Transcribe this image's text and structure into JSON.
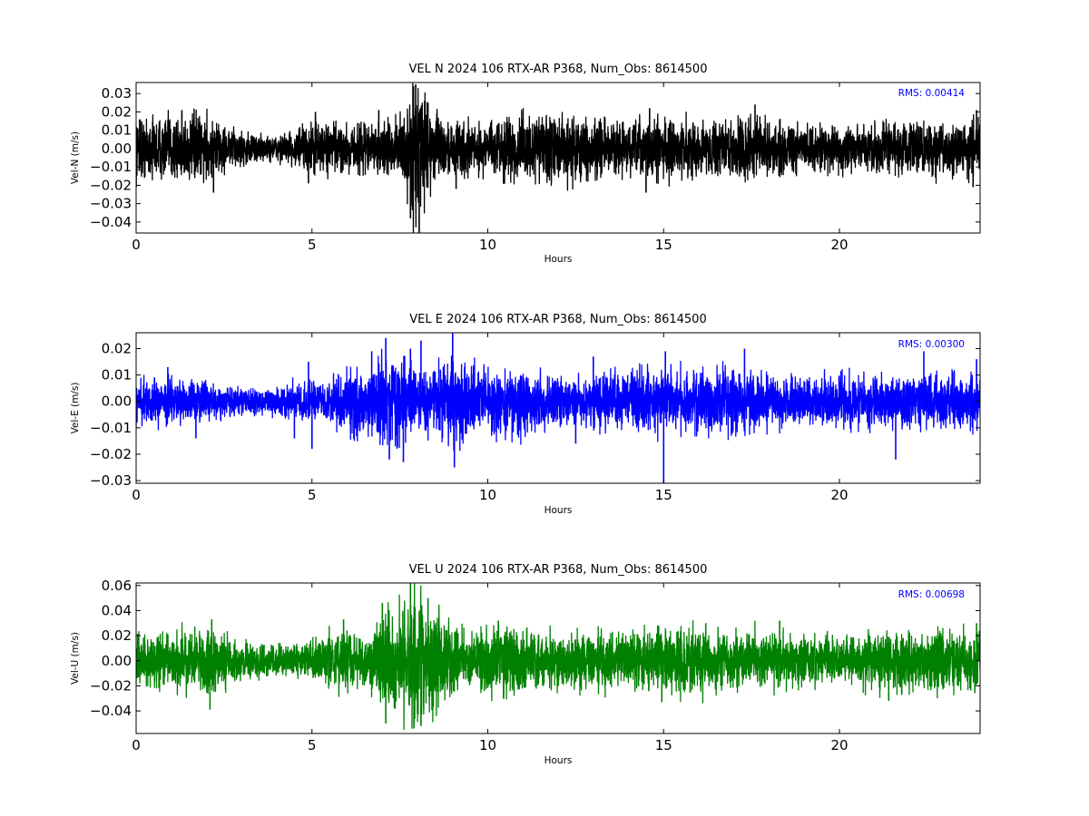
{
  "chart_data": [
    {
      "type": "line",
      "title": "VEL N 2024 106 RTX-AR  P368, Num_Obs: 8614500",
      "xlabel": "Hours",
      "ylabel": "Vel-N (m/s)",
      "xlim": [
        0,
        24
      ],
      "ylim": [
        -0.046,
        0.036
      ],
      "xticks": [
        0,
        5,
        10,
        15,
        20
      ],
      "xtick_labels": [
        "0",
        "5",
        "10",
        "15",
        "20"
      ],
      "yticks": [
        -0.04,
        -0.03,
        -0.02,
        -0.01,
        0.0,
        0.01,
        0.02,
        0.03
      ],
      "ytick_labels": [
        "−0.04",
        "−0.03",
        "−0.02",
        "−0.01",
        "0.00",
        "0.01",
        "0.02",
        "0.03"
      ],
      "annotation": "RMS:  0.00414",
      "annotation_color": "#0000ff",
      "color": "#000000",
      "grid": false,
      "series": [
        {
          "hours": [
            0,
            1,
            2,
            2.2,
            3,
            4,
            4.5,
            5,
            6,
            7,
            7.5,
            7.9,
            8.1,
            8.5,
            9,
            10,
            11,
            12,
            13,
            14,
            15,
            16,
            17,
            17.5,
            18,
            19,
            20,
            21,
            22,
            23,
            24
          ],
          "envelope": [
            0.013,
            0.014,
            0.015,
            0.012,
            0.007,
            0.006,
            0.009,
            0.011,
            0.011,
            0.011,
            0.013,
            0.03,
            0.027,
            0.014,
            0.012,
            0.012,
            0.014,
            0.015,
            0.013,
            0.012,
            0.013,
            0.012,
            0.012,
            0.015,
            0.012,
            0.01,
            0.011,
            0.011,
            0.011,
            0.012,
            0.014
          ],
          "peaks": [
            [
              0.1,
              0.016
            ],
            [
              1.3,
              0.021
            ],
            [
              2.2,
              -0.024
            ],
            [
              4.9,
              -0.019
            ],
            [
              5.1,
              0.02
            ],
            [
              6.9,
              0.021
            ],
            [
              7.8,
              -0.038
            ],
            [
              7.95,
              0.035
            ],
            [
              8.05,
              -0.046
            ],
            [
              8.3,
              0.025
            ],
            [
              9.1,
              -0.022
            ],
            [
              14.5,
              -0.024
            ],
            [
              14.6,
              0.022
            ],
            [
              17.6,
              0.024
            ],
            [
              23.8,
              -0.021
            ],
            [
              23.9,
              0.021
            ]
          ]
        }
      ]
    },
    {
      "type": "line",
      "title": "VEL E 2024 106 RTX-AR  P368, Num_Obs: 8614500",
      "xlabel": "Hours",
      "ylabel": "Vel-E (m/s)",
      "xlim": [
        0,
        24
      ],
      "ylim": [
        -0.031,
        0.026
      ],
      "xticks": [
        0,
        5,
        10,
        15,
        20
      ],
      "xtick_labels": [
        "0",
        "5",
        "10",
        "15",
        "20"
      ],
      "yticks": [
        -0.03,
        -0.02,
        -0.01,
        0.0,
        0.01,
        0.02
      ],
      "ytick_labels": [
        "−0.03",
        "−0.02",
        "−0.01",
        "0.00",
        "0.01",
        "0.02"
      ],
      "annotation": "RMS:  0.00300",
      "annotation_color": "#0000ff",
      "color": "#0000ff",
      "grid": false,
      "series": [
        {
          "hours": [
            0,
            1,
            2,
            3,
            4,
            4.5,
            5,
            5.5,
            6,
            7,
            7.5,
            8,
            8.5,
            9,
            9.5,
            10,
            11,
            12,
            12.5,
            13,
            14,
            15,
            16,
            17,
            18,
            19,
            20,
            21,
            22,
            23,
            24
          ],
          "envelope": [
            0.007,
            0.007,
            0.006,
            0.004,
            0.004,
            0.006,
            0.006,
            0.006,
            0.01,
            0.014,
            0.014,
            0.01,
            0.01,
            0.014,
            0.012,
            0.01,
            0.01,
            0.008,
            0.007,
            0.009,
            0.009,
            0.01,
            0.009,
            0.01,
            0.008,
            0.007,
            0.008,
            0.008,
            0.008,
            0.009,
            0.008
          ],
          "peaks": [
            [
              0.9,
              0.013
            ],
            [
              1.7,
              -0.014
            ],
            [
              4.5,
              -0.014
            ],
            [
              4.9,
              0.015
            ],
            [
              5.0,
              -0.018
            ],
            [
              6.7,
              0.019
            ],
            [
              7.1,
              0.024
            ],
            [
              7.2,
              -0.022
            ],
            [
              7.6,
              -0.023
            ],
            [
              7.8,
              0.02
            ],
            [
              8.1,
              0.023
            ],
            [
              9.0,
              0.026
            ],
            [
              9.05,
              -0.025
            ],
            [
              12.5,
              -0.016
            ],
            [
              13.0,
              0.017
            ],
            [
              15.0,
              -0.031
            ],
            [
              15.05,
              0.019
            ],
            [
              17.3,
              0.02
            ],
            [
              21.6,
              -0.022
            ],
            [
              22.4,
              0.019
            ],
            [
              23.9,
              0.016
            ]
          ]
        }
      ]
    },
    {
      "type": "line",
      "title": "VEL U 2024 106 RTX-AR  P368, Num_Obs: 8614500",
      "xlabel": "Hours",
      "ylabel": "Vel-U (m/s)",
      "xlim": [
        0,
        24
      ],
      "ylim": [
        -0.058,
        0.062
      ],
      "xticks": [
        0,
        5,
        10,
        15,
        20
      ],
      "xtick_labels": [
        "0",
        "5",
        "10",
        "15",
        "20"
      ],
      "yticks": [
        -0.04,
        -0.02,
        0.0,
        0.02,
        0.04,
        0.06
      ],
      "ytick_labels": [
        "−0.04",
        "−0.02",
        "0.00",
        "0.02",
        "0.04",
        "0.06"
      ],
      "annotation": "RMS:  0.00698",
      "annotation_color": "#0000ff",
      "color": "#008000",
      "grid": false,
      "series": [
        {
          "hours": [
            0,
            1,
            2,
            2.5,
            3,
            4,
            4.5,
            5,
            5.5,
            6,
            6.5,
            7,
            7.5,
            8,
            8.5,
            9,
            9.4,
            10,
            11,
            12,
            13,
            14,
            15,
            16,
            17,
            18,
            19,
            20,
            21,
            22,
            23,
            24
          ],
          "envelope": [
            0.016,
            0.018,
            0.022,
            0.018,
            0.012,
            0.009,
            0.01,
            0.014,
            0.019,
            0.02,
            0.017,
            0.028,
            0.036,
            0.045,
            0.035,
            0.025,
            0.015,
            0.024,
            0.022,
            0.018,
            0.018,
            0.018,
            0.02,
            0.022,
            0.018,
            0.02,
            0.018,
            0.016,
            0.018,
            0.021,
            0.021,
            0.019
          ],
          "peaks": [
            [
              2.1,
              -0.039
            ],
            [
              2.15,
              0.033
            ],
            [
              5.9,
              0.033
            ],
            [
              7.0,
              0.046
            ],
            [
              7.1,
              -0.05
            ],
            [
              7.8,
              0.062
            ],
            [
              7.9,
              -0.054
            ],
            [
              8.1,
              -0.052
            ],
            [
              8.3,
              0.05
            ],
            [
              10.3,
              0.032
            ],
            [
              14.95,
              -0.033
            ],
            [
              16.2,
              0.03
            ],
            [
              18.3,
              0.032
            ],
            [
              21.4,
              -0.032
            ],
            [
              23.9,
              0.03
            ]
          ]
        }
      ]
    }
  ]
}
